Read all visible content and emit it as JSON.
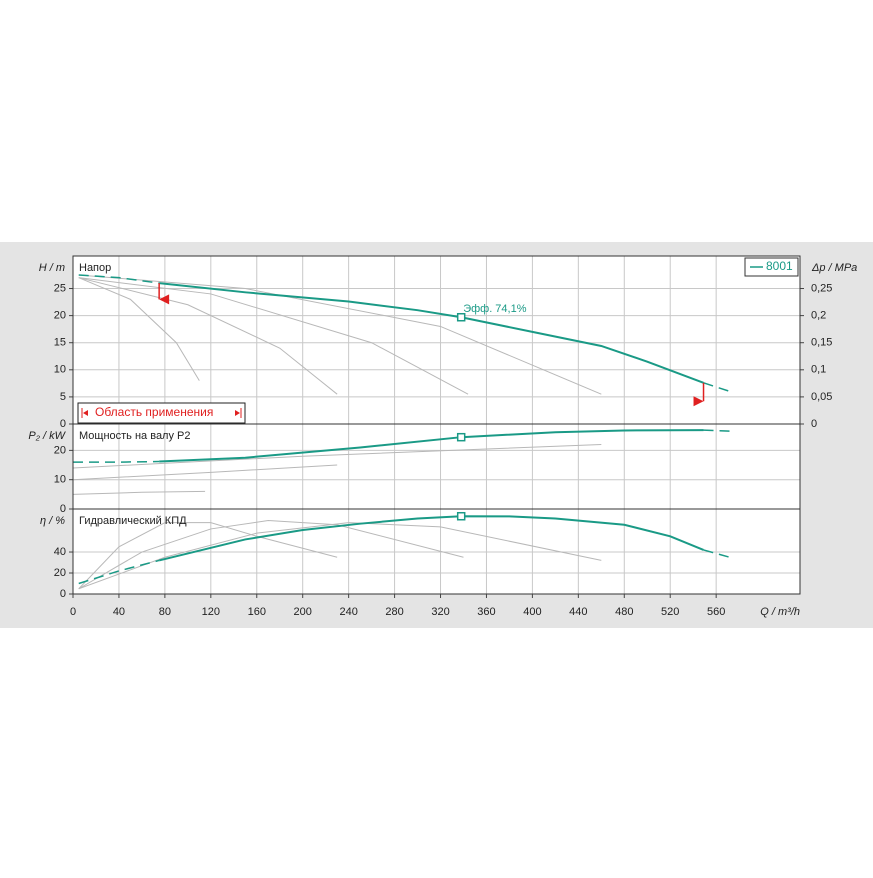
{
  "chart_data": {
    "type": "line",
    "x_label": "Q / m³/h",
    "xlim": [
      0,
      633
    ],
    "xticks": [
      0,
      40,
      80,
      120,
      160,
      200,
      240,
      280,
      320,
      360,
      400,
      440,
      480,
      520,
      560
    ],
    "panels": [
      {
        "title": "Напор",
        "ylabel": "H / m",
        "ylim": [
          0,
          31
        ],
        "yticks": [
          0,
          5,
          10,
          15,
          20,
          25
        ],
        "y2label": "Δp / MPa",
        "y2lim": [
          0,
          0.31
        ],
        "y2ticks": [
          0,
          {
            "value": 0.05,
            "label": "0,05"
          },
          {
            "value": 0.1,
            "label": "0,1"
          },
          {
            "value": 0.15,
            "label": "0,15"
          },
          {
            "value": 0.2,
            "label": "0,2"
          },
          {
            "value": 0.25,
            "label": "0,25"
          }
        ],
        "series": [
          {
            "name": "8001",
            "color": "#1a9a86",
            "x": [
              75,
              150,
              240,
              300,
              338,
              400,
              460,
              500,
              549
            ],
            "values": [
              26,
              24.3,
              22.6,
              21,
              19.7,
              17,
              14.4,
              11.5,
              7.6
            ]
          }
        ],
        "extensions": [
          {
            "x": [
              5,
              40,
              75
            ],
            "values": [
              27.5,
              27,
              26
            ]
          },
          {
            "x": [
              549,
              575
            ],
            "values": [
              7.6,
              5.8
            ]
          }
        ],
        "reference_curves": [
          {
            "x": [
              5,
              50,
              90,
              110
            ],
            "values": [
              27,
              23,
              15,
              8
            ]
          },
          {
            "x": [
              5,
              100,
              180,
              230
            ],
            "values": [
              27,
              22,
              14,
              5.5
            ]
          },
          {
            "x": [
              5,
              120,
              260,
              344
            ],
            "values": [
              27,
              24,
              15,
              5.5
            ]
          },
          {
            "x": [
              5,
              150,
              320,
              460
            ],
            "values": [
              27.5,
              25,
              18,
              5.5
            ]
          }
        ],
        "operating_point": {
          "x": 338,
          "value": 19.7
        },
        "annotation": "Эфф.  74,1%",
        "range_label": "Область применения",
        "range_marks": [
          {
            "x": 75,
            "values": [
              26,
              23
            ]
          },
          {
            "x": 549,
            "values": [
              7.6,
              4.2
            ]
          }
        ]
      },
      {
        "title": "Мощность на валу P2",
        "ylabel": "P₂ / kW",
        "ylim": [
          0,
          29
        ],
        "yticks": [
          0,
          10,
          20
        ],
        "series": [
          {
            "name": "8001",
            "color": "#1a9a86",
            "x": [
              75,
              150,
              250,
              338,
              420,
              480,
              549
            ],
            "values": [
              16.2,
              17.5,
              21,
              24.5,
              26.2,
              26.8,
              26.9
            ]
          }
        ],
        "extensions": [
          {
            "x": [
              0,
              40,
              75
            ],
            "values": [
              16,
              16,
              16.2
            ]
          },
          {
            "x": [
              549,
              575
            ],
            "values": [
              26.9,
              26.5
            ]
          }
        ],
        "reference_curves": [
          {
            "x": [
              0,
              200,
              460
            ],
            "values": [
              14,
              18,
              22
            ]
          },
          {
            "x": [
              0,
              120,
              230
            ],
            "values": [
              10,
              12.5,
              15
            ]
          },
          {
            "x": [
              0,
              60,
              115
            ],
            "values": [
              5,
              5.7,
              6
            ]
          }
        ],
        "operating_point": {
          "x": 338,
          "value": 24.5
        }
      },
      {
        "title": "Гидравлический КПД",
        "ylabel": "η / %",
        "ylim": [
          0,
          81
        ],
        "yticks": [
          0,
          20,
          40
        ],
        "series": [
          {
            "name": "8001",
            "color": "#1a9a86",
            "x": [
              75,
              150,
              200,
              250,
              300,
              338,
              380,
              420,
              480,
              520,
              549
            ],
            "values": [
              32,
              52,
              61,
              67,
              72,
              74.1,
              74,
              72,
              66,
              55,
              42
            ]
          }
        ],
        "extensions": [
          {
            "x": [
              5,
              40,
              75
            ],
            "values": [
              10,
              22,
              32
            ]
          },
          {
            "x": [
              549,
              575
            ],
            "values": [
              42,
              34
            ]
          }
        ],
        "reference_curves": [
          {
            "x": [
              5,
              40,
              80,
              120,
              160,
              230
            ],
            "values": [
              5,
              45,
              68,
              68,
              55,
              35
            ]
          },
          {
            "x": [
              5,
              60,
              120,
              170,
              230,
              340
            ],
            "values": [
              5,
              40,
              62,
              70,
              66,
              35
            ]
          },
          {
            "x": [
              5,
              80,
              160,
              240,
              320,
              460
            ],
            "values": [
              5,
              35,
              58,
              68,
              64,
              32
            ]
          }
        ],
        "operating_point": {
          "x": 338,
          "value": 74.1
        }
      }
    ]
  }
}
